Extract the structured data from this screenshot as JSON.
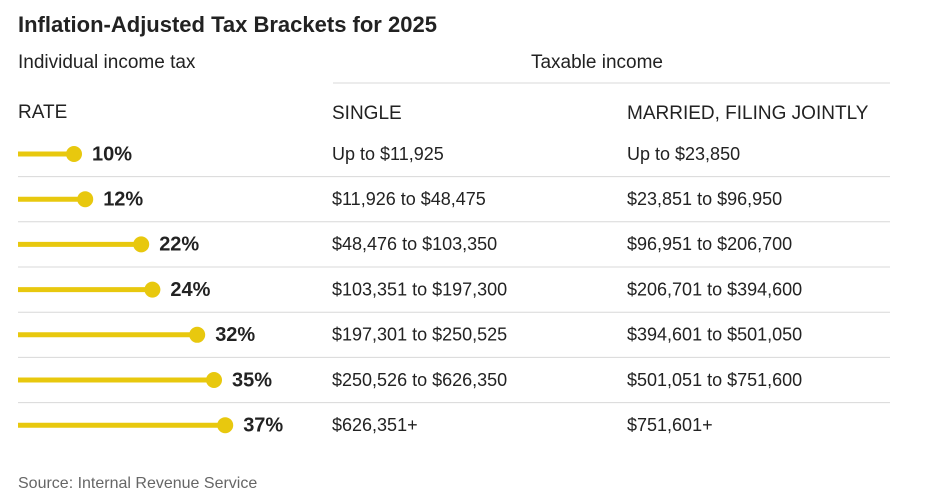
{
  "title": "Inflation-Adjusted Tax Brackets for 2025",
  "subtitle": "Individual income tax",
  "column_group": "Taxable income",
  "headers": [
    "RATE",
    "SINGLE",
    "MARRIED, FILING JOINTLY"
  ],
  "rows": [
    {
      "rate": 10,
      "rate_label": "10%",
      "single": "Up to $11,925",
      "married": "Up to $23,850"
    },
    {
      "rate": 12,
      "rate_label": "12%",
      "single": "$11,926 to $48,475",
      "married": "$23,851 to $96,950"
    },
    {
      "rate": 22,
      "rate_label": "22%",
      "single": "$48,476 to $103,350",
      "married": "$96,951 to $206,700"
    },
    {
      "rate": 24,
      "rate_label": "24%",
      "single": "$103,351 to $197,300",
      "married": "$206,701 to $394,600"
    },
    {
      "rate": 32,
      "rate_label": "32%",
      "single": "$197,301 to $250,525",
      "married": "$394,601 to $501,050"
    },
    {
      "rate": 35,
      "rate_label": "35%",
      "single": "$250,526 to $626,350",
      "married": "$501,051 to $751,600"
    },
    {
      "rate": 37,
      "rate_label": "37%",
      "single": "$626,351+",
      "married": "$751,601+"
    }
  ],
  "source": "Source: Internal Revenue Service",
  "color": "#e8c80e"
}
